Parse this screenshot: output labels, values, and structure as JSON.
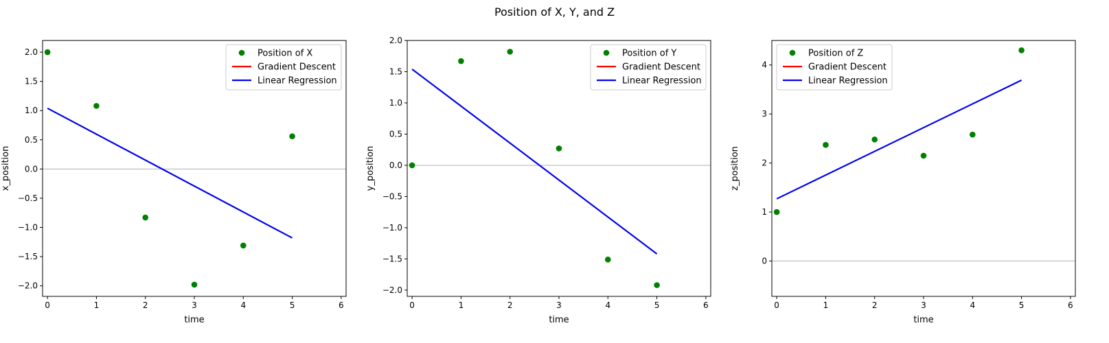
{
  "figure": {
    "title": "Position of X, Y, and Z"
  },
  "colors": {
    "points": "#008000",
    "gradient_descent": "#ff0000",
    "linear_regression": "#0000ee",
    "zero_line": "#b0b0b0"
  },
  "chart_data": [
    {
      "type": "scatter",
      "xlabel": "time",
      "ylabel": "x_position",
      "xlim": [
        -0.1,
        6.1
      ],
      "ylim": [
        -2.18,
        2.2
      ],
      "xticks": [
        0,
        1,
        2,
        3,
        4,
        5,
        6
      ],
      "yticks": [
        -2.0,
        -1.5,
        -1.0,
        -0.5,
        0.0,
        0.5,
        1.0,
        1.5,
        2.0
      ],
      "legend_position": "top-right",
      "points": {
        "name": "Position of X",
        "x": [
          0,
          1,
          2,
          3,
          4,
          5
        ],
        "y": [
          2.0,
          1.08,
          -0.83,
          -1.98,
          -1.31,
          0.56
        ]
      },
      "lines": [
        {
          "name": "Gradient Descent",
          "color": "#ff0000",
          "x": [],
          "y": []
        },
        {
          "name": "Linear Regression",
          "color": "#0000ee",
          "x": [
            0,
            5
          ],
          "y": [
            1.04,
            -1.18
          ]
        }
      ]
    },
    {
      "type": "scatter",
      "xlabel": "time",
      "ylabel": "y_position",
      "xlim": [
        -0.1,
        6.1
      ],
      "ylim": [
        -2.1,
        2.0
      ],
      "xticks": [
        0,
        1,
        2,
        3,
        4,
        5,
        6
      ],
      "yticks": [
        -2.0,
        -1.5,
        -1.0,
        -0.5,
        0.0,
        0.5,
        1.0,
        1.5,
        2.0
      ],
      "legend_position": "top-right",
      "points": {
        "name": "Position of Y",
        "x": [
          0,
          1,
          2,
          3,
          4,
          5
        ],
        "y": [
          0.0,
          1.67,
          1.82,
          0.27,
          -1.51,
          -1.92
        ]
      },
      "lines": [
        {
          "name": "Gradient Descent",
          "color": "#ff0000",
          "x": [],
          "y": []
        },
        {
          "name": "Linear Regression",
          "color": "#0000ee",
          "x": [
            0,
            5
          ],
          "y": [
            1.54,
            -1.42
          ]
        }
      ]
    },
    {
      "type": "scatter",
      "xlabel": "time",
      "ylabel": "z_position",
      "xlim": [
        -0.1,
        6.1
      ],
      "ylim": [
        -0.72,
        4.5
      ],
      "xticks": [
        0,
        1,
        2,
        3,
        4,
        5,
        6
      ],
      "yticks": [
        0,
        1,
        2,
        3,
        4
      ],
      "legend_position": "top-left",
      "points": {
        "name": "Position of Z",
        "x": [
          0,
          1,
          2,
          3,
          4,
          5
        ],
        "y": [
          1.0,
          2.37,
          2.48,
          2.15,
          2.58,
          4.3
        ]
      },
      "lines": [
        {
          "name": "Gradient Descent",
          "color": "#ff0000",
          "x": [],
          "y": []
        },
        {
          "name": "Linear Regression",
          "color": "#0000ee",
          "x": [
            0,
            5
          ],
          "y": [
            1.27,
            3.69
          ]
        }
      ]
    }
  ]
}
